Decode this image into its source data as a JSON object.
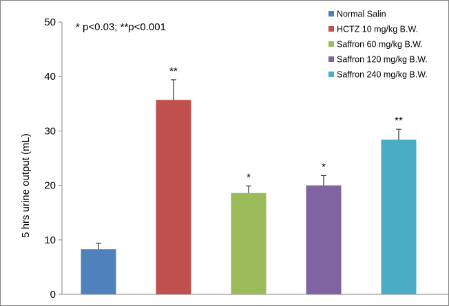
{
  "chart_data": {
    "type": "bar",
    "title": "",
    "xlabel": "",
    "ylabel": "5 hrs urine output (mL)",
    "ylim": [
      0,
      50
    ],
    "yticks": [
      0,
      10,
      20,
      30,
      40,
      50
    ],
    "grid": false,
    "legend_position": "top-right",
    "annotation": "*  p<0.03; **p<0.001",
    "series": [
      {
        "name": "Normal Salin",
        "value": 8.3,
        "error": 1.1,
        "sig": "",
        "color": "#4f81bd"
      },
      {
        "name": "HCTZ 10 mg/kg B.W.",
        "value": 35.7,
        "error": 3.7,
        "sig": "**",
        "color": "#c0504d"
      },
      {
        "name": "Saffron 60 mg/kg B.W.",
        "value": 18.6,
        "error": 1.3,
        "sig": "*",
        "color": "#9bbb59"
      },
      {
        "name": "Saffron 120 mg/kg B.W.",
        "value": 20.0,
        "error": 1.8,
        "sig": "*",
        "color": "#8064a2"
      },
      {
        "name": "Saffron 240 mg/kg B.W.",
        "value": 28.4,
        "error": 1.9,
        "sig": "**",
        "color": "#4bacc6"
      }
    ]
  }
}
